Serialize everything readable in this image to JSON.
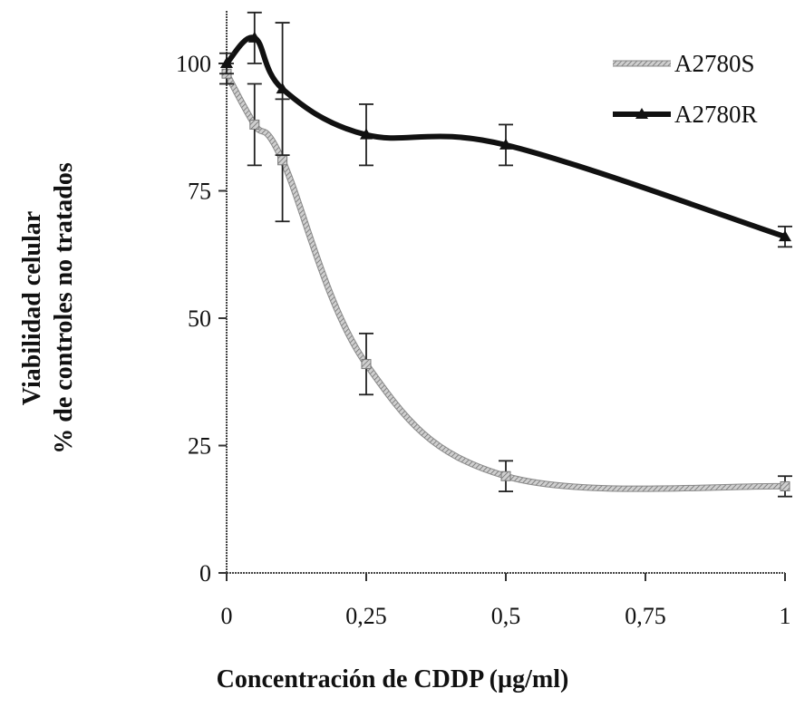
{
  "chart_data": {
    "type": "line",
    "xlabel": "Concentración de CDDP (µg/ml)",
    "ylabel_lines": [
      "Viabilidad celular",
      "% de controles no tratados"
    ],
    "x_ticks": [
      0,
      0.25,
      0.5,
      0.75,
      1
    ],
    "x_tick_labels": [
      "0",
      "0,25",
      "0,5",
      "0,75",
      "1"
    ],
    "y_ticks": [
      0,
      25,
      50,
      75,
      100
    ],
    "y_tick_labels": [
      "0",
      "25",
      "50",
      "75",
      "100"
    ],
    "xlim": [
      0,
      1
    ],
    "ylim": [
      0,
      110
    ],
    "grid": "none",
    "legend_position": "top-right",
    "series": [
      {
        "name": "A2780S",
        "style": "light-hatched",
        "color": "#9a9a9a",
        "x": [
          0,
          0.05,
          0.1,
          0.25,
          0.5,
          1
        ],
        "y": [
          98,
          88,
          81,
          41,
          19,
          17
        ],
        "err": [
          2,
          8,
          12,
          6,
          3,
          2
        ]
      },
      {
        "name": "A2780R",
        "style": "bold",
        "color": "#111111",
        "x": [
          0,
          0.05,
          0.1,
          0.25,
          0.5,
          1
        ],
        "y": [
          100,
          105,
          95,
          86,
          84,
          66
        ],
        "err": [
          2,
          5,
          13,
          6,
          4,
          2
        ]
      }
    ]
  }
}
